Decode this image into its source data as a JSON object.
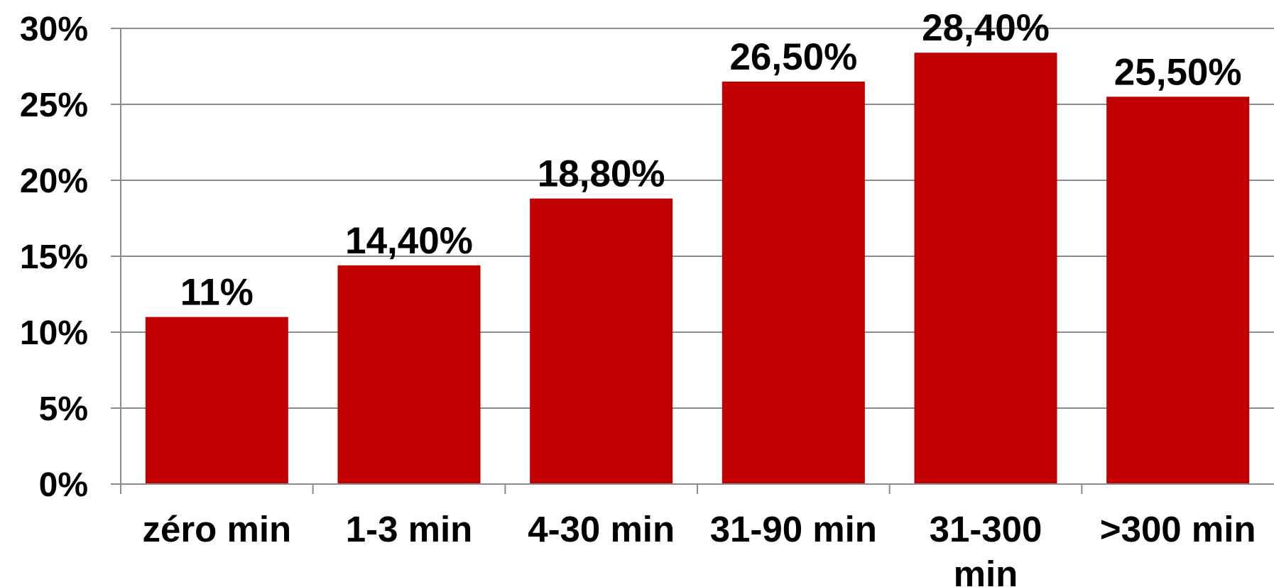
{
  "chart_data": {
    "type": "bar",
    "categories": [
      "zéro min",
      "1-3 min",
      "4-30 min",
      "31-90 min",
      "31-300 min",
      ">300 min"
    ],
    "category_lines": [
      [
        "zéro min"
      ],
      [
        "1-3 min"
      ],
      [
        "4-30 min"
      ],
      [
        "31-90 min"
      ],
      [
        "31-300",
        "min"
      ],
      [
        ">300 min"
      ]
    ],
    "values": [
      11,
      14.4,
      18.8,
      26.5,
      28.4,
      25.5
    ],
    "data_labels": [
      "11%",
      "14,40%",
      "18,80%",
      "26,50%",
      "28,40%",
      "25,50%"
    ],
    "ylim": [
      0,
      30
    ],
    "yticks": [
      0,
      5,
      10,
      15,
      20,
      25,
      30
    ],
    "ytick_labels": [
      "0%",
      "5%",
      "10%",
      "15%",
      "20%",
      "25%",
      "30%"
    ],
    "title": "",
    "xlabel": "",
    "ylabel": "",
    "grid": true,
    "legend": "none",
    "bar_color": "#c00000",
    "grid_color": "#8c8c8c",
    "axis_color": "#8c8c8c"
  }
}
